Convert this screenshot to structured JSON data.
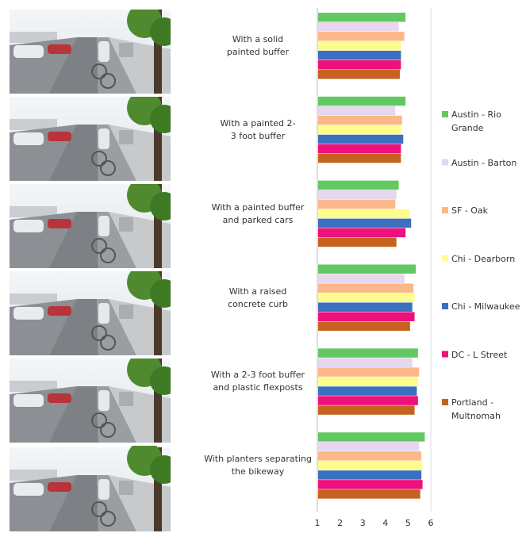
{
  "chart_data": {
    "type": "barh",
    "categories": [
      "With a solid painted buffer",
      "With a painted 2-3 foot buffer",
      "With a painted buffer and parked cars",
      "With a raised concrete curb",
      "With a 2-3 foot buffer and plastic flexposts",
      "With planters separating the bikeway"
    ],
    "series": [
      {
        "name": "Austin - Rio Grande",
        "color": "#62c962",
        "values": [
          4.85,
          4.85,
          4.55,
          5.3,
          5.4,
          5.7
        ]
      },
      {
        "name": "Austin - Barton",
        "color": "#e6d6ee",
        "values": [
          4.55,
          4.4,
          4.45,
          4.8,
          5.15,
          5.45
        ]
      },
      {
        "name": "SF - Oak",
        "color": "#fbb98a",
        "values": [
          4.8,
          4.7,
          4.4,
          5.2,
          5.45,
          5.55
        ]
      },
      {
        "name": "Chi - Dearborn",
        "color": "#fdfd8e",
        "values": [
          4.65,
          4.65,
          5.05,
          5.25,
          5.4,
          5.6
        ]
      },
      {
        "name": "Chi - Milwaukee",
        "color": "#3b6fbf",
        "values": [
          4.65,
          4.75,
          5.1,
          5.15,
          5.35,
          5.55
        ]
      },
      {
        "name": "DC - L Street",
        "color": "#ee107c",
        "values": [
          4.65,
          4.65,
          4.85,
          5.25,
          5.4,
          5.6
        ]
      },
      {
        "name": "Portland - Multnomah",
        "color": "#c6621f",
        "values": [
          4.6,
          4.65,
          4.45,
          5.05,
          5.25,
          5.5
        ]
      }
    ],
    "xlim": [
      1,
      6
    ],
    "xticks": [
      1,
      2,
      3,
      4,
      5,
      6
    ],
    "legend": "right"
  }
}
